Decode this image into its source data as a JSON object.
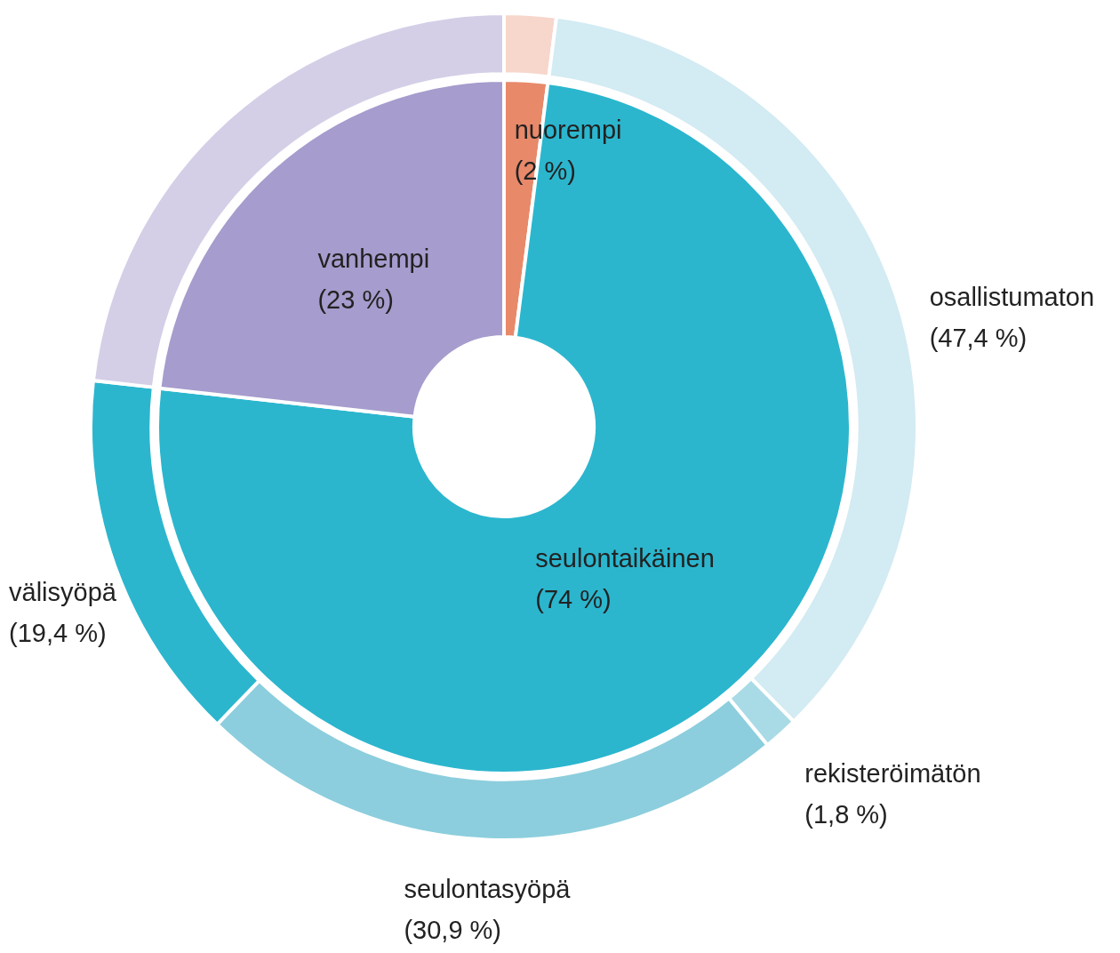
{
  "chart_data": [
    {
      "type": "donut",
      "categories": [
        "nuorempi",
        "seulontaikäinen",
        "vanhempi"
      ],
      "values": [
        2,
        74,
        23
      ],
      "value_labels": [
        "(2 %)",
        "(74 %)",
        "(23 %)"
      ],
      "colors": [
        "#e8896a",
        "#2bb6ce",
        "#a69ccd"
      ]
    },
    {
      "type": "donut",
      "categories": [
        null,
        "osallistumaton",
        "rekisteröimätön",
        "seulontasyöpä",
        "välisyöpä",
        null
      ],
      "values": [
        2.7,
        47.4,
        1.8,
        30.9,
        19.4,
        30.9
      ],
      "value_labels": [
        null,
        "(47,4 %)",
        "(1,8 %)",
        "(30,9 %)",
        "(19,4 %)",
        null
      ],
      "colors": [
        "#f7d6cb",
        "#d3ebf2",
        "#a9dbe6",
        "#8ccedd",
        "#2bb6ce",
        "#d4cfe7"
      ]
    }
  ]
}
